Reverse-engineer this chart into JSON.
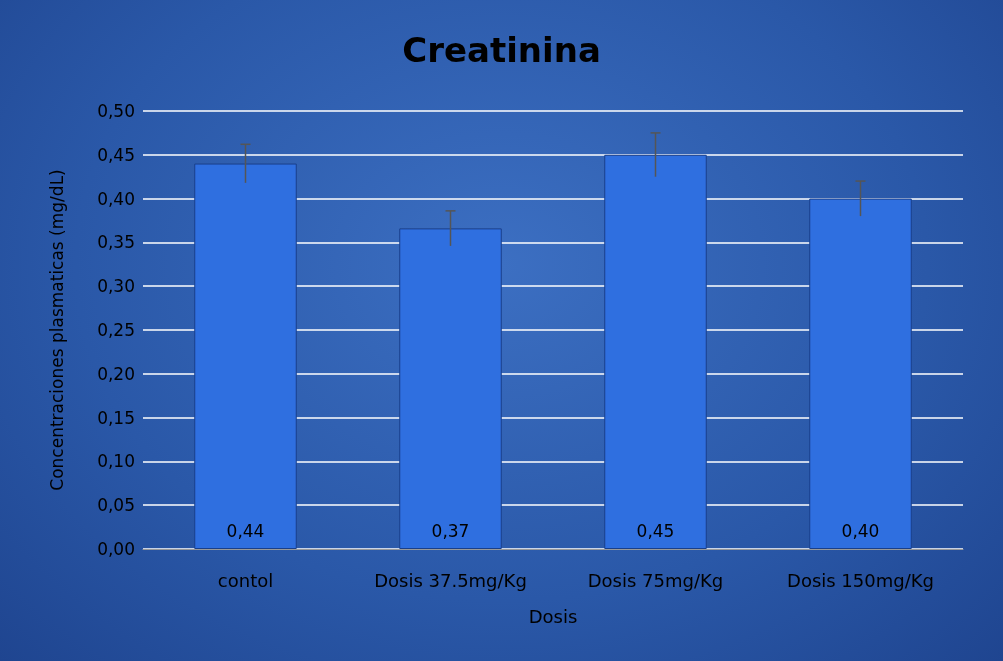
{
  "chart_data": {
    "type": "bar",
    "title": "Creatinina",
    "xlabel": "Dosis",
    "ylabel": "Concentraciones plasmaticas (mg/dL)",
    "categories": [
      "contol",
      "Dosis 37.5mg/Kg",
      "Dosis 75mg/Kg",
      "Dosis 150mg/Kg"
    ],
    "values": [
      0.44,
      0.366,
      0.45,
      0.4
    ],
    "value_labels": [
      "0,44",
      "0,37",
      "0,45",
      "0,40"
    ],
    "errors": [
      0.022,
      0.02,
      0.025,
      0.02
    ],
    "color": "#2f6fe0",
    "ylim": [
      0,
      0.5
    ],
    "yticks": [
      {
        "value": 0,
        "label": "0,00"
      },
      {
        "value": 0.05,
        "label": "0,05"
      },
      {
        "value": 0.1,
        "label": "0,10"
      },
      {
        "value": 0.15,
        "label": "0,15"
      },
      {
        "value": 0.2,
        "label": "0,20"
      },
      {
        "value": 0.25,
        "label": "0,25"
      },
      {
        "value": 0.3,
        "label": "0,30"
      },
      {
        "value": 0.35,
        "label": "0,35"
      },
      {
        "value": 0.4,
        "label": "0,40"
      },
      {
        "value": 0.45,
        "label": "0,45"
      },
      {
        "value": 0.5,
        "label": "0,50"
      }
    ],
    "grid": "y"
  }
}
